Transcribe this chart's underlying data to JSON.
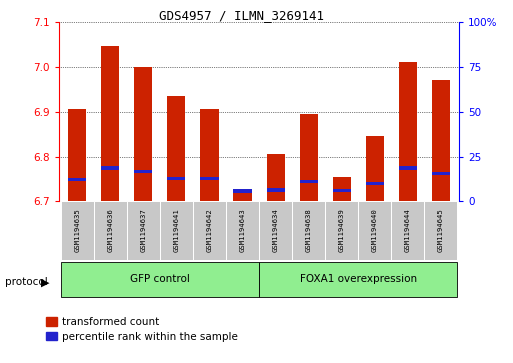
{
  "title": "GDS4957 / ILMN_3269141",
  "samples": [
    "GSM1194635",
    "GSM1194636",
    "GSM1194637",
    "GSM1194641",
    "GSM1194642",
    "GSM1194643",
    "GSM1194634",
    "GSM1194638",
    "GSM1194639",
    "GSM1194640",
    "GSM1194644",
    "GSM1194645"
  ],
  "transformed_count": [
    6.905,
    7.045,
    7.0,
    6.935,
    6.905,
    6.725,
    6.805,
    6.895,
    6.755,
    6.845,
    7.01,
    6.97
  ],
  "percentile_bottom": [
    6.745,
    6.771,
    6.763,
    6.748,
    6.748,
    6.719,
    6.722,
    6.74,
    6.72,
    6.736,
    6.77,
    6.758
  ],
  "percentile_top": [
    6.752,
    6.778,
    6.769,
    6.755,
    6.754,
    6.728,
    6.73,
    6.748,
    6.728,
    6.744,
    6.778,
    6.765
  ],
  "ylim_left": [
    6.7,
    7.1
  ],
  "ylim_right": [
    0,
    100
  ],
  "y_ticks_left": [
    6.7,
    6.8,
    6.9,
    7.0,
    7.1
  ],
  "y_ticks_right": [
    0,
    25,
    50,
    75,
    100
  ],
  "bar_color": "#cc2200",
  "blue_color": "#2222cc",
  "gfp_label": "GFP control",
  "foxa1_label": "FOXA1 overexpression",
  "protocol_label": "protocol",
  "group_bg_color": "#90ee90",
  "tick_bg_color": "#c8c8c8",
  "legend_red_label": "transformed count",
  "legend_blue_label": "percentile rank within the sample",
  "bar_width": 0.55
}
